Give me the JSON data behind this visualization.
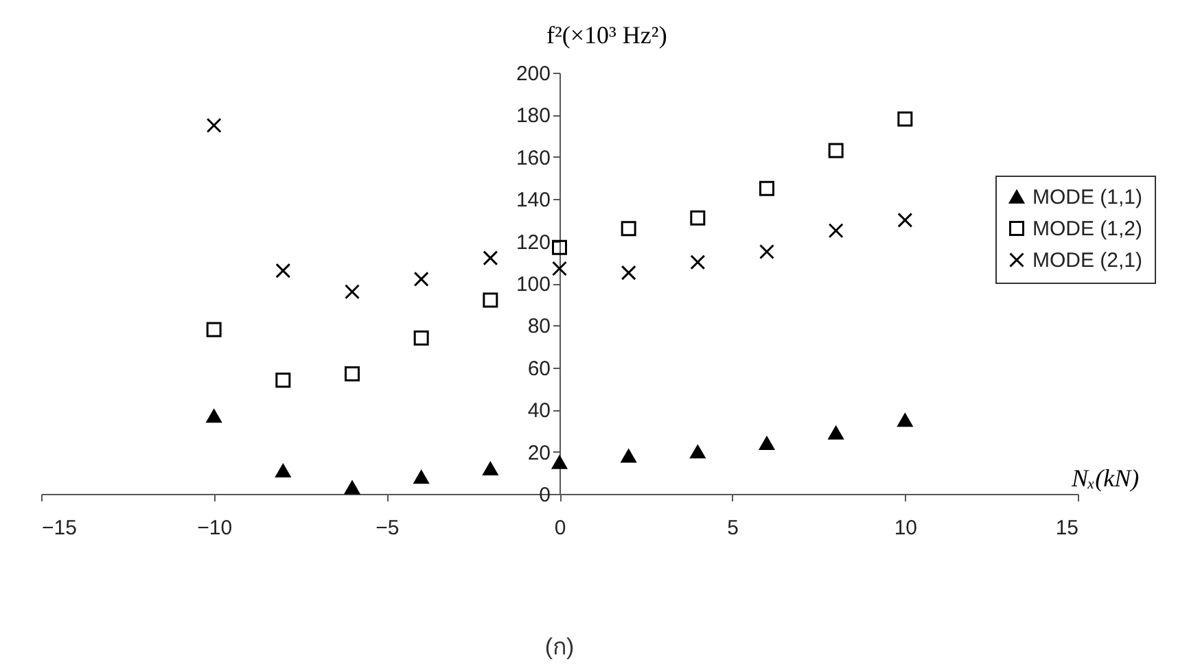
{
  "chart_data": {
    "type": "scatter",
    "xlabel": "Nₓ(kN)",
    "ylabel": "f²(×10³ Hz²)",
    "x": [
      -10,
      -8,
      -6,
      -4,
      -2,
      0,
      2,
      4,
      6,
      8,
      10
    ],
    "series": [
      {
        "name": "MODE (1,1)",
        "color": "#000000",
        "marker": "triangle",
        "values": [
          37,
          11,
          3,
          8,
          12,
          15,
          18,
          20,
          24,
          29,
          35
        ]
      },
      {
        "name": "MODE (1,2)",
        "color": "#000000",
        "marker": "square",
        "values": [
          78,
          54,
          57,
          74,
          92,
          117,
          126,
          131,
          145,
          163,
          178
        ]
      },
      {
        "name": "MODE (2,1)",
        "color": "#000000",
        "marker": "cross",
        "values": [
          175,
          106,
          96,
          102,
          112,
          107,
          105,
          110,
          115,
          125,
          130
        ]
      }
    ],
    "xlim": [
      -15,
      15
    ],
    "xticks": [
      -15,
      -10,
      -5,
      0,
      5,
      10,
      15
    ],
    "ylim": [
      0,
      200
    ],
    "yticks": [
      0,
      20,
      40,
      60,
      80,
      100,
      120,
      140,
      160,
      180,
      200
    ],
    "grid": false,
    "legend": "right",
    "annotations": [
      "(ก)"
    ]
  }
}
